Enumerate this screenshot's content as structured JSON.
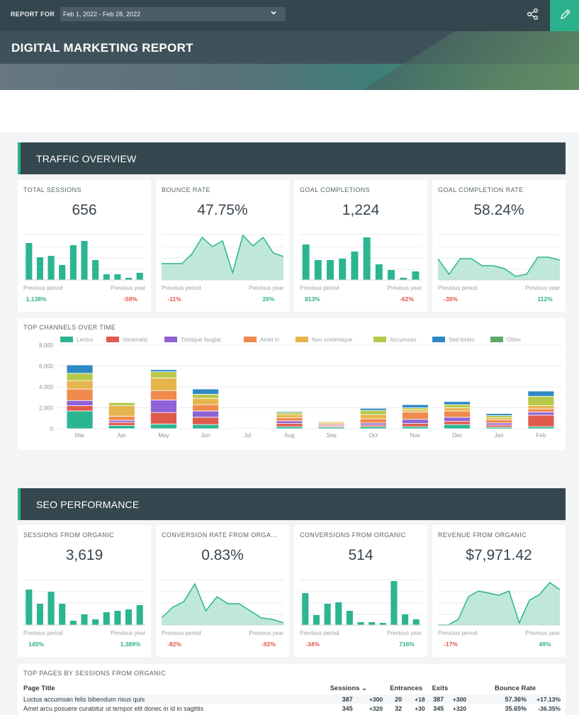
{
  "header": {
    "report_for_label": "REPORT FOR",
    "date_range": "Feb 1, 2022 - Feb 28, 2022",
    "title": "DIGITAL MARKETING REPORT",
    "icons": {
      "share": "share-icon",
      "edit": "pencil-icon",
      "dropdown": "chevron-down-icon"
    },
    "accent_color": "#2bb08c",
    "bar_color": "#34474f"
  },
  "traffic": {
    "heading": "TRAFFIC OVERVIEW",
    "cards": [
      {
        "title": "TOTAL SESSIONS",
        "value": "656",
        "type": "bar",
        "data": [
          52,
          32,
          34,
          21,
          49,
          55,
          28,
          8,
          8,
          3,
          10
        ],
        "prev_label": "Previous period",
        "year_label": "Previous year",
        "prev": "1,138%",
        "prev_dir": "pos",
        "year": "-59%",
        "year_dir": "neg"
      },
      {
        "title": "BOUNCE RATE",
        "value": "47.75%",
        "type": "area",
        "data": [
          23,
          23,
          23,
          37,
          60,
          47,
          55,
          10,
          63,
          48,
          60,
          38,
          33
        ],
        "prev_label": "Previous period",
        "year_label": "Previous year",
        "prev": "-11%",
        "prev_dir": "neg",
        "year": "26%",
        "year_dir": "pos"
      },
      {
        "title": "GOAL COMPLETIONS",
        "value": "1,224",
        "type": "bar",
        "data": [
          50,
          28,
          28,
          30,
          40,
          60,
          22,
          14,
          3,
          12
        ],
        "prev_label": "Previous period",
        "year_label": "Previous year",
        "prev": "813%",
        "prev_dir": "pos",
        "year": "-62%",
        "year_dir": "neg"
      },
      {
        "title": "GOAL COMPLETION RATE",
        "value": "58.24%",
        "type": "area",
        "data": [
          30,
          8,
          30,
          30,
          20,
          20,
          16,
          5,
          8,
          32,
          32,
          28
        ],
        "prev_label": "Previous period",
        "year_label": "Previous year",
        "prev": "-30%",
        "prev_dir": "neg",
        "year": "112%",
        "year_dir": "pos"
      }
    ]
  },
  "channels": {
    "title": "TOP CHANNELS OVER TIME",
    "chart_data": {
      "type": "bar",
      "stacked": true,
      "categories": [
        "Mar",
        "Apr",
        "May",
        "Jun",
        "Jul",
        "Aug",
        "Sep",
        "Oct",
        "Nov",
        "Dec",
        "Jan",
        "Feb"
      ],
      "y_ticks": [
        "8,000",
        "6,000",
        "4,000",
        "2,000",
        "0"
      ],
      "ylim": [
        0,
        8000
      ],
      "grid": true,
      "legend_position": "top",
      "series": [
        {
          "name": "Lectus",
          "color": "#2bb591",
          "values": [
            1700,
            300,
            450,
            400,
            60,
            200,
            150,
            200,
            200,
            400,
            150,
            200
          ]
        },
        {
          "name": "Venenatis",
          "color": "#e05a4c",
          "values": [
            500,
            300,
            1100,
            700,
            60,
            300,
            100,
            150,
            300,
            300,
            200,
            1100
          ]
        },
        {
          "name": "Tristique feugiat",
          "color": "#8f62d6",
          "values": [
            500,
            200,
            1200,
            600,
            40,
            250,
            100,
            200,
            400,
            400,
            200,
            300
          ]
        },
        {
          "name": "Amet in",
          "color": "#ef8a4c",
          "values": [
            1100,
            400,
            900,
            600,
            40,
            300,
            120,
            400,
            700,
            600,
            300,
            300
          ]
        },
        {
          "name": "Non scelerisque",
          "color": "#e6b44c",
          "values": [
            800,
            1000,
            1200,
            600,
            40,
            300,
            120,
            400,
            200,
            300,
            200,
            300
          ]
        },
        {
          "name": "Accumsan",
          "color": "#b8c94a",
          "values": [
            700,
            300,
            600,
            400,
            40,
            200,
            100,
            400,
            200,
            300,
            200,
            900
          ]
        },
        {
          "name": "Sed lorem",
          "color": "#2f8ac4",
          "values": [
            800,
            0,
            200,
            500,
            0,
            100,
            0,
            200,
            300,
            300,
            200,
            500
          ]
        },
        {
          "name": "Other",
          "color": "#5ea76a",
          "values": [
            0,
            0,
            0,
            0,
            0,
            0,
            0,
            0,
            0,
            0,
            0,
            0
          ]
        }
      ]
    }
  },
  "seo": {
    "heading": "SEO PERFORMANCE",
    "cards": [
      {
        "title": "SESSIONS FROM ORGANIC",
        "value": "3,619",
        "type": "bar",
        "data": [
          50,
          30,
          47,
          30,
          6,
          15,
          8,
          18,
          20,
          22,
          28
        ],
        "prev_label": "Previous period",
        "year_label": "Previous year",
        "prev": "145%",
        "prev_dir": "pos",
        "year": "1,389%",
        "year_dir": "pos"
      },
      {
        "title": "CONVERSION RATE FROM ORGA...",
        "value": "0.83%",
        "type": "area",
        "data": [
          10,
          25,
          33,
          58,
          20,
          40,
          30,
          30,
          20,
          10,
          8,
          3
        ],
        "prev_label": "Previous period",
        "year_label": "Previous year",
        "prev": "-82%",
        "prev_dir": "neg",
        "year": "-92%",
        "year_dir": "neg"
      },
      {
        "title": "CONVERSIONS FROM ORGANIC",
        "value": "514",
        "type": "bar",
        "data": [
          45,
          14,
          30,
          32,
          20,
          4,
          4,
          3,
          62,
          15,
          8
        ],
        "prev_label": "Previous period",
        "year_label": "Previous year",
        "prev": "-34%",
        "prev_dir": "neg",
        "year": "716%",
        "year_dir": "pos"
      },
      {
        "title": "REVENUE FROM ORGANIC",
        "value": "$7,971.42",
        "type": "area",
        "data": [
          0,
          0,
          8,
          40,
          48,
          45,
          42,
          48,
          3,
          35,
          43,
          60,
          50
        ],
        "prev_label": "Previous period",
        "year_label": "Previous year",
        "prev": "-17%",
        "prev_dir": "neg",
        "year": "49%",
        "year_dir": "pos"
      }
    ]
  },
  "top_pages": {
    "title": "TOP PAGES BY SESSIONS FROM ORGANIC",
    "columns": [
      "Page Title",
      "Sessions",
      "Entrances",
      "Exits",
      "Bounce Rate"
    ],
    "sort_icon": "caret-down-icon",
    "rows": [
      {
        "page": "Luctus accumsan felis bibendum risus quis",
        "sessions": "387",
        "sessions_d": "+300",
        "entrances": "20",
        "entrances_d": "+18",
        "exits": "387",
        "exits_d": "+300",
        "bounce": "57.36%",
        "bounce_d": "+17.13%",
        "bounce_dir": "pos"
      },
      {
        "page": "Amet arcu posuere curabitur ut tempor elit donec in id in sagittis",
        "sessions": "345",
        "sessions_d": "+320",
        "entrances": "32",
        "entrances_d": "+30",
        "exits": "345",
        "exits_d": "+320",
        "bounce": "35.65%",
        "bounce_d": "-36.35%",
        "bounce_dir": "neg"
      }
    ]
  }
}
